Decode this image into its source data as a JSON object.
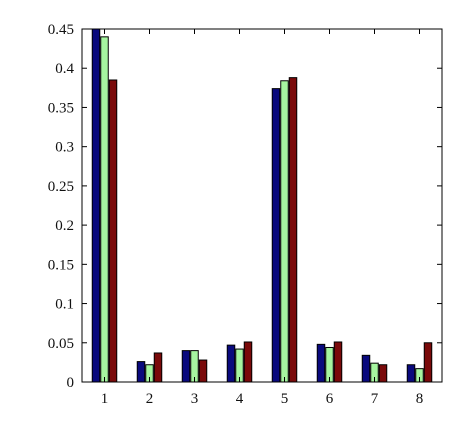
{
  "chart_data": {
    "type": "bar",
    "title": "",
    "xlabel": "",
    "ylabel": "",
    "categories": [
      "1",
      "2",
      "3",
      "4",
      "5",
      "6",
      "7",
      "8"
    ],
    "ylim": [
      0,
      0.45
    ],
    "yticks": [
      0,
      0.05,
      0.1,
      0.15,
      0.2,
      0.25,
      0.3,
      0.35,
      0.4,
      0.45
    ],
    "ytick_labels": [
      "0",
      "0.05",
      "0.1",
      "0.15",
      "0.2",
      "0.25",
      "0.3",
      "0.35",
      "0.4",
      "0.45"
    ],
    "grid": false,
    "legend": "none",
    "series": [
      {
        "color": "#0a0a7d",
        "values": [
          0.45,
          0.026,
          0.04,
          0.047,
          0.374,
          0.048,
          0.034,
          0.022
        ]
      },
      {
        "color": "#a6f5a0",
        "values": [
          0.44,
          0.022,
          0.04,
          0.042,
          0.384,
          0.044,
          0.024,
          0.017
        ]
      },
      {
        "color": "#7a0a0a",
        "values": [
          0.385,
          0.037,
          0.028,
          0.051,
          0.388,
          0.051,
          0.022,
          0.05
        ]
      }
    ]
  }
}
